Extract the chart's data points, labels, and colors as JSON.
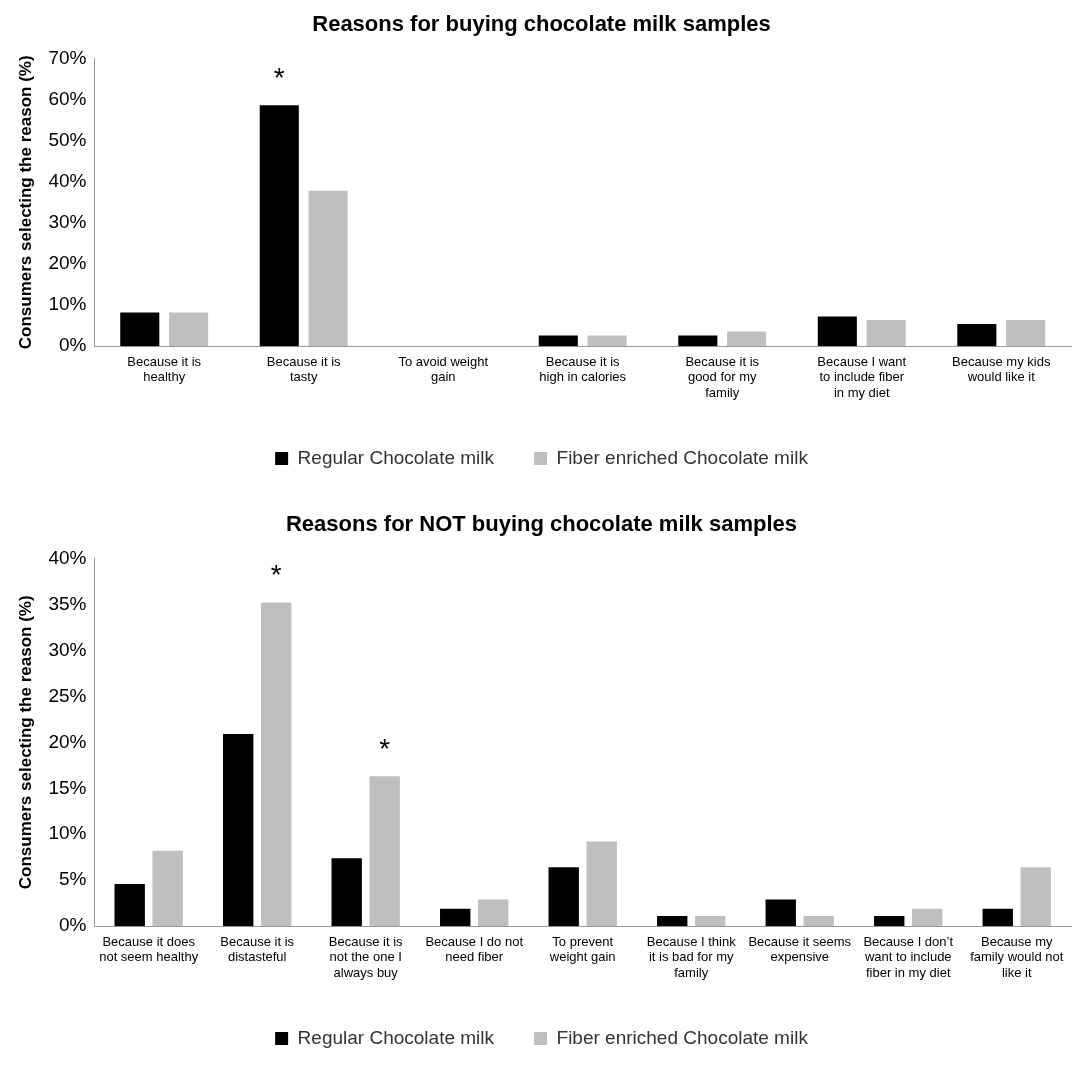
{
  "chart_data": [
    {
      "type": "bar",
      "title": "Reasons for buying chocolate milk samples",
      "ylabel": "Consumers selecting the reason (%)",
      "categories": [
        "Because it is healthy",
        "Because it is tasty",
        "To avoid weight gain",
        "Because it is high in calories",
        "Because it is good for my family",
        "Because I want to include fiber in my diet",
        "Because my kids would like it"
      ],
      "series": [
        {
          "name": "Regular Chocolate milk",
          "color": "#000000",
          "values": [
            8.2,
            58.6,
            0,
            2.6,
            2.6,
            7.2,
            5.4
          ]
        },
        {
          "name": "Fiber enriched Chocolate milk",
          "color": "#bfbfbf",
          "values": [
            8.2,
            37.8,
            0,
            2.6,
            3.6,
            6.4,
            6.4
          ]
        }
      ],
      "ylim": [
        0,
        70
      ],
      "yticks": [
        {
          "value": 0,
          "label": "0%"
        },
        {
          "value": 10,
          "label": "10%"
        },
        {
          "value": 20,
          "label": "20%"
        },
        {
          "value": 30,
          "label": "30%"
        },
        {
          "value": 40,
          "label": "40%"
        },
        {
          "value": 50,
          "label": "50%"
        },
        {
          "value": 60,
          "label": "60%"
        },
        {
          "value": 70,
          "label": "70%"
        }
      ],
      "annotations": [
        {
          "text": "*",
          "x": "Because it is tasty",
          "y": 58.6
        }
      ],
      "grid": false,
      "legend": "bottom"
    },
    {
      "type": "bar",
      "title": "Reasons for NOT buying chocolate milk samples",
      "ylabel": "Consumers selecting the reason (%)",
      "categories": [
        "Because it does not seem healthy",
        "Because it is distasteful",
        "Because it is not the one I always buy",
        "Because I do not need fiber",
        "To prevent weight gain",
        "Because I think it is bad for my family",
        "Because it seems expensive",
        "Because I don’t want to include fiber in my diet",
        "Because my family would not like it"
      ],
      "series": [
        {
          "name": "Regular Chocolate milk",
          "color": "#000000",
          "values": [
            4.6,
            20.9,
            7.4,
            1.9,
            6.4,
            1.1,
            2.9,
            1.1,
            1.9
          ]
        },
        {
          "name": "Fiber enriched Chocolate milk",
          "color": "#bfbfbf",
          "values": [
            8.2,
            35.2,
            16.3,
            2.9,
            9.2,
            1.1,
            1.1,
            1.9,
            6.4
          ]
        }
      ],
      "ylim": [
        0,
        40
      ],
      "yticks": [
        {
          "value": 0,
          "label": "0%"
        },
        {
          "value": 5,
          "label": "5%"
        },
        {
          "value": 10,
          "label": "10%"
        },
        {
          "value": 15,
          "label": "15%"
        },
        {
          "value": 20,
          "label": "20%"
        },
        {
          "value": 25,
          "label": "25%"
        },
        {
          "value": 30,
          "label": "30%"
        },
        {
          "value": 35,
          "label": "35%"
        },
        {
          "value": 40,
          "label": "40%"
        }
      ],
      "annotations": [
        {
          "text": "*",
          "x": "Because it is distasteful",
          "y": 35.2
        },
        {
          "text": "*",
          "x": "Because it is not the one I always buy",
          "y": 16.3
        }
      ],
      "grid": false,
      "legend": "bottom"
    }
  ]
}
